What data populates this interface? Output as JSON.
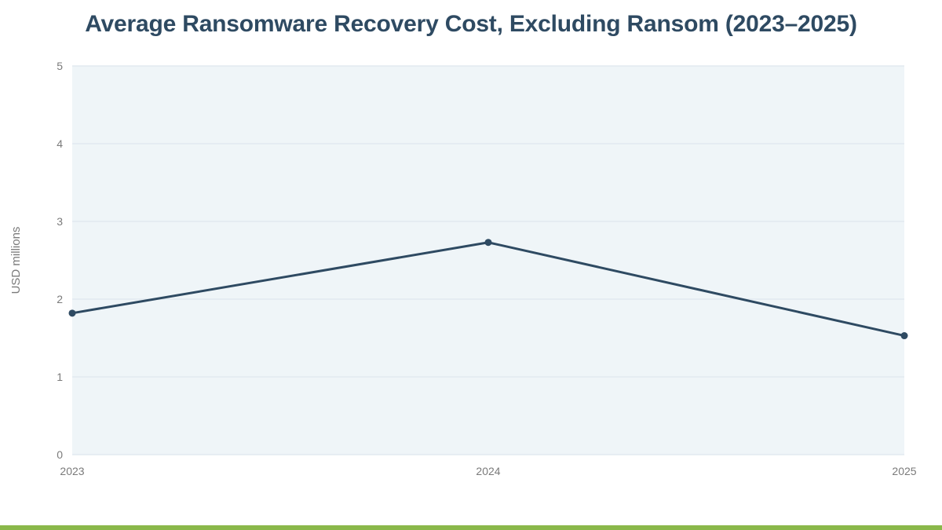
{
  "chart_data": {
    "type": "line",
    "title": "Average Ransomware Recovery Cost, Excluding Ransom (2023–2025)",
    "xlabel": "",
    "ylabel": "USD millions",
    "x": [
      "2023",
      "2024",
      "2025"
    ],
    "series": [
      {
        "values": [
          1.82,
          2.73,
          1.53
        ]
      }
    ],
    "ylim": [
      0,
      5
    ],
    "yticks": [
      "0",
      "1",
      "2",
      "3",
      "4",
      "5"
    ],
    "grid": true,
    "legend": "none"
  },
  "colors": {
    "line": "#2e4a62",
    "title": "#2e4a62",
    "plot_background": "#eff5f8",
    "grid": "#e2eaef",
    "tick_text": "#7a7a7a",
    "bottom_bar": "#8ab84a"
  }
}
